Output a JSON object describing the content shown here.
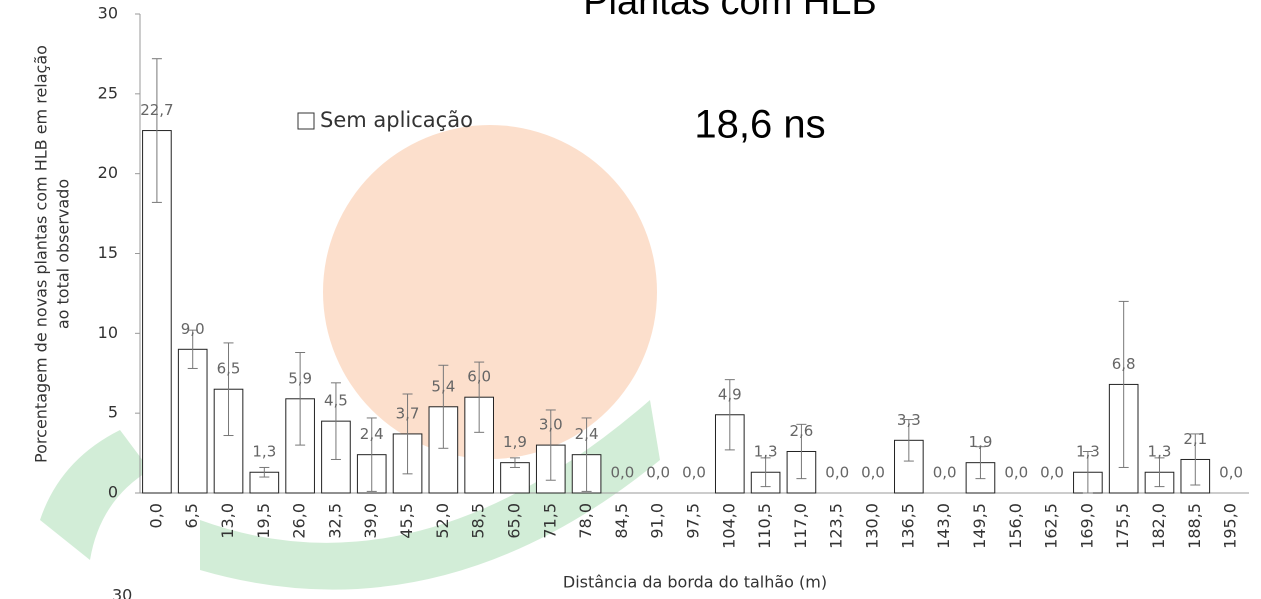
{
  "chart_data": {
    "type": "bar",
    "title": "Plantas com HLB",
    "annotation": "18,6 ns",
    "x_label": "Distância da borda do talhão (m)",
    "y_label": [
      "Porcentagem de novas plantas com HLB em relação",
      "ao total observado"
    ],
    "categories": [
      "0,0",
      "6,5",
      "13,0",
      "19,5",
      "26,0",
      "32,5",
      "39,0",
      "45,5",
      "52,0",
      "58,5",
      "65,0",
      "71,5",
      "78,0",
      "84,5",
      "91,0",
      "97,5",
      "104,0",
      "110,5",
      "117,0",
      "123,5",
      "130,0",
      "136,5",
      "143,0",
      "149,5",
      "156,0",
      "162,5",
      "169,0",
      "175,5",
      "182,0",
      "188,5",
      "195,0"
    ],
    "series": [
      {
        "name": "Sem aplicação",
        "color": "#ffffff",
        "values": [
          22.7,
          9.0,
          6.5,
          1.3,
          5.9,
          4.5,
          2.4,
          3.7,
          5.4,
          6.0,
          1.9,
          3.0,
          2.4,
          0,
          0,
          0,
          4.9,
          1.3,
          2.6,
          0,
          0,
          3.3,
          0,
          1.9,
          0,
          0,
          1.3,
          6.8,
          1.3,
          2.1,
          0
        ],
        "value_labels": [
          "22,7",
          "9,0",
          "6,5",
          "1,3",
          "5,9",
          "4,5",
          "2,4",
          "3,7",
          "5,4",
          "6,0",
          "1,9",
          "3,0",
          "2,4",
          "0,0",
          "0,0",
          "0,0",
          "4,9",
          "1,3",
          "2,6",
          "0,0",
          "0,0",
          "3,3",
          "0,0",
          "1,9",
          "0,0",
          "0,0",
          "1,3",
          "6,8",
          "1,3",
          "2,1",
          "0,0"
        ],
        "errors": [
          4.5,
          1.2,
          2.9,
          0.3,
          2.9,
          2.4,
          2.3,
          2.5,
          2.6,
          2.2,
          0.3,
          2.2,
          2.3,
          0,
          0,
          0,
          2.2,
          0.9,
          1.7,
          0,
          0,
          1.3,
          0,
          1.0,
          0,
          0,
          1.3,
          5.2,
          0.9,
          1.6,
          0
        ]
      }
    ],
    "ylim": [
      0,
      30
    ],
    "yticks": [
      0,
      5,
      10,
      15,
      20,
      25,
      30
    ],
    "legend": "top-left",
    "next_chart_tick": "30"
  }
}
